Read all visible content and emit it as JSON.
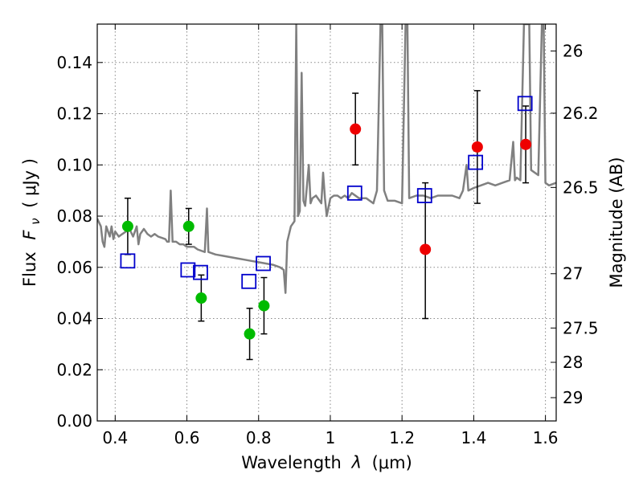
{
  "chart_data": {
    "type": "scatter",
    "xlabel_prefix": "Wavelength",
    "xlabel_symbol": "λ",
    "xlabel_unit": "(μm)",
    "ylabel_prefix": "Flux",
    "ylabel_symbol": "F",
    "ylabel_sub": "ν",
    "ylabel_unit": "( μJy )",
    "y2label": "Magnitude (AB)",
    "xlim": [
      0.35,
      1.63
    ],
    "ylim": [
      0.0,
      0.155
    ],
    "grid": true,
    "xticks": [
      0.4,
      0.6,
      0.8,
      1.0,
      1.2,
      1.4,
      1.6
    ],
    "xtick_labels": [
      "0.4",
      "0.6",
      "0.8",
      "1",
      "1.2",
      "1.4",
      "1.6"
    ],
    "yticks": [
      0.0,
      0.02,
      0.04,
      0.06,
      0.08,
      0.1,
      0.12,
      0.14
    ],
    "ytick_labels": [
      "0.00",
      "0.02",
      "0.04",
      "0.06",
      "0.08",
      "0.10",
      "0.12",
      "0.14"
    ],
    "y2ticks": [
      {
        "label": "26",
        "flux": 0.1445
      },
      {
        "label": "26.2",
        "flux": 0.1202
      },
      {
        "label": "26.5",
        "flux": 0.0912
      },
      {
        "label": "27",
        "flux": 0.0575
      },
      {
        "label": "27.5",
        "flux": 0.0363
      },
      {
        "label": "28",
        "flux": 0.0229
      },
      {
        "label": "29",
        "flux": 0.0091
      }
    ],
    "colors": {
      "model": "#808080",
      "green": "#00bb00",
      "red": "#ee0000",
      "box": "#0000cc",
      "errorbar": "#000000"
    },
    "series": [
      {
        "marker": "circle-green",
        "points": [
          {
            "x": 0.435,
            "y": 0.076,
            "err": [
              0.065,
              0.087
            ]
          },
          {
            "x": 0.605,
            "y": 0.076,
            "err": [
              0.069,
              0.083
            ]
          },
          {
            "x": 0.64,
            "y": 0.048,
            "err": [
              0.039,
              0.057
            ]
          },
          {
            "x": 0.775,
            "y": 0.034,
            "err": [
              0.024,
              0.044
            ]
          },
          {
            "x": 0.815,
            "y": 0.045,
            "err": [
              0.034,
              0.056
            ]
          }
        ]
      },
      {
        "marker": "circle-red",
        "points": [
          {
            "x": 1.07,
            "y": 0.114,
            "err": [
              0.1,
              0.128
            ]
          },
          {
            "x": 1.265,
            "y": 0.067,
            "err": [
              0.04,
              0.093
            ]
          },
          {
            "x": 1.41,
            "y": 0.107,
            "err": [
              0.085,
              0.129
            ]
          },
          {
            "x": 1.545,
            "y": 0.108,
            "err": [
              0.093,
              0.123
            ]
          }
        ]
      },
      {
        "marker": "square-blue",
        "points": [
          {
            "x": 0.435,
            "y": 0.0625
          },
          {
            "x": 0.603,
            "y": 0.059
          },
          {
            "x": 0.638,
            "y": 0.058
          },
          {
            "x": 0.773,
            "y": 0.0545
          },
          {
            "x": 0.813,
            "y": 0.0615
          },
          {
            "x": 1.068,
            "y": 0.089
          },
          {
            "x": 1.263,
            "y": 0.088
          },
          {
            "x": 1.405,
            "y": 0.101
          },
          {
            "x": 1.543,
            "y": 0.124
          }
        ]
      }
    ],
    "model_spectrum": [
      [
        0.35,
        0.079
      ],
      [
        0.36,
        0.076
      ],
      [
        0.365,
        0.07
      ],
      [
        0.37,
        0.068
      ],
      [
        0.375,
        0.076
      ],
      [
        0.38,
        0.074
      ],
      [
        0.385,
        0.072
      ],
      [
        0.39,
        0.076
      ],
      [
        0.395,
        0.071
      ],
      [
        0.4,
        0.074
      ],
      [
        0.41,
        0.072
      ],
      [
        0.42,
        0.073
      ],
      [
        0.43,
        0.074
      ],
      [
        0.44,
        0.075
      ],
      [
        0.45,
        0.072
      ],
      [
        0.46,
        0.076
      ],
      [
        0.465,
        0.069
      ],
      [
        0.47,
        0.073
      ],
      [
        0.48,
        0.075
      ],
      [
        0.49,
        0.073
      ],
      [
        0.5,
        0.072
      ],
      [
        0.51,
        0.073
      ],
      [
        0.52,
        0.072
      ],
      [
        0.53,
        0.0715
      ],
      [
        0.54,
        0.071
      ],
      [
        0.545,
        0.07
      ],
      [
        0.55,
        0.07
      ],
      [
        0.555,
        0.09
      ],
      [
        0.56,
        0.07
      ],
      [
        0.57,
        0.07
      ],
      [
        0.58,
        0.069
      ],
      [
        0.59,
        0.069
      ],
      [
        0.6,
        0.068
      ],
      [
        0.62,
        0.068
      ],
      [
        0.63,
        0.067
      ],
      [
        0.65,
        0.066
      ],
      [
        0.656,
        0.083
      ],
      [
        0.66,
        0.066
      ],
      [
        0.68,
        0.065
      ],
      [
        0.7,
        0.0645
      ],
      [
        0.72,
        0.064
      ],
      [
        0.74,
        0.0635
      ],
      [
        0.76,
        0.063
      ],
      [
        0.78,
        0.0625
      ],
      [
        0.8,
        0.062
      ],
      [
        0.82,
        0.0615
      ],
      [
        0.84,
        0.061
      ],
      [
        0.86,
        0.06
      ],
      [
        0.87,
        0.059
      ],
      [
        0.875,
        0.05
      ],
      [
        0.88,
        0.07
      ],
      [
        0.89,
        0.076
      ],
      [
        0.9,
        0.078
      ],
      [
        0.905,
        0.155
      ],
      [
        0.91,
        0.08
      ],
      [
        0.915,
        0.082
      ],
      [
        0.92,
        0.136
      ],
      [
        0.925,
        0.086
      ],
      [
        0.93,
        0.084
      ],
      [
        0.94,
        0.1
      ],
      [
        0.945,
        0.085
      ],
      [
        0.95,
        0.087
      ],
      [
        0.96,
        0.088
      ],
      [
        0.97,
        0.086
      ],
      [
        0.975,
        0.085
      ],
      [
        0.98,
        0.097
      ],
      [
        0.985,
        0.087
      ],
      [
        0.99,
        0.08
      ],
      [
        1.0,
        0.087
      ],
      [
        1.01,
        0.088
      ],
      [
        1.02,
        0.088
      ],
      [
        1.03,
        0.087
      ],
      [
        1.04,
        0.088
      ],
      [
        1.05,
        0.087
      ],
      [
        1.06,
        0.089
      ],
      [
        1.08,
        0.087
      ],
      [
        1.1,
        0.087
      ],
      [
        1.12,
        0.085
      ],
      [
        1.13,
        0.09
      ],
      [
        1.14,
        0.155
      ],
      [
        1.145,
        0.155
      ],
      [
        1.15,
        0.09
      ],
      [
        1.16,
        0.086
      ],
      [
        1.18,
        0.086
      ],
      [
        1.2,
        0.085
      ],
      [
        1.21,
        0.155
      ],
      [
        1.215,
        0.155
      ],
      [
        1.22,
        0.087
      ],
      [
        1.24,
        0.088
      ],
      [
        1.26,
        0.088
      ],
      [
        1.28,
        0.087
      ],
      [
        1.3,
        0.088
      ],
      [
        1.32,
        0.088
      ],
      [
        1.34,
        0.088
      ],
      [
        1.36,
        0.087
      ],
      [
        1.37,
        0.09
      ],
      [
        1.38,
        0.1
      ],
      [
        1.385,
        0.09
      ],
      [
        1.4,
        0.091
      ],
      [
        1.42,
        0.092
      ],
      [
        1.44,
        0.093
      ],
      [
        1.46,
        0.092
      ],
      [
        1.48,
        0.093
      ],
      [
        1.5,
        0.094
      ],
      [
        1.51,
        0.109
      ],
      [
        1.515,
        0.094
      ],
      [
        1.52,
        0.095
      ],
      [
        1.53,
        0.094
      ],
      [
        1.54,
        0.155
      ],
      [
        1.545,
        0.155
      ],
      [
        1.55,
        0.155
      ],
      [
        1.555,
        0.155
      ],
      [
        1.56,
        0.098
      ],
      [
        1.58,
        0.096
      ],
      [
        1.59,
        0.155
      ],
      [
        1.595,
        0.155
      ],
      [
        1.6,
        0.093
      ],
      [
        1.61,
        0.092
      ],
      [
        1.63,
        0.093
      ]
    ]
  }
}
